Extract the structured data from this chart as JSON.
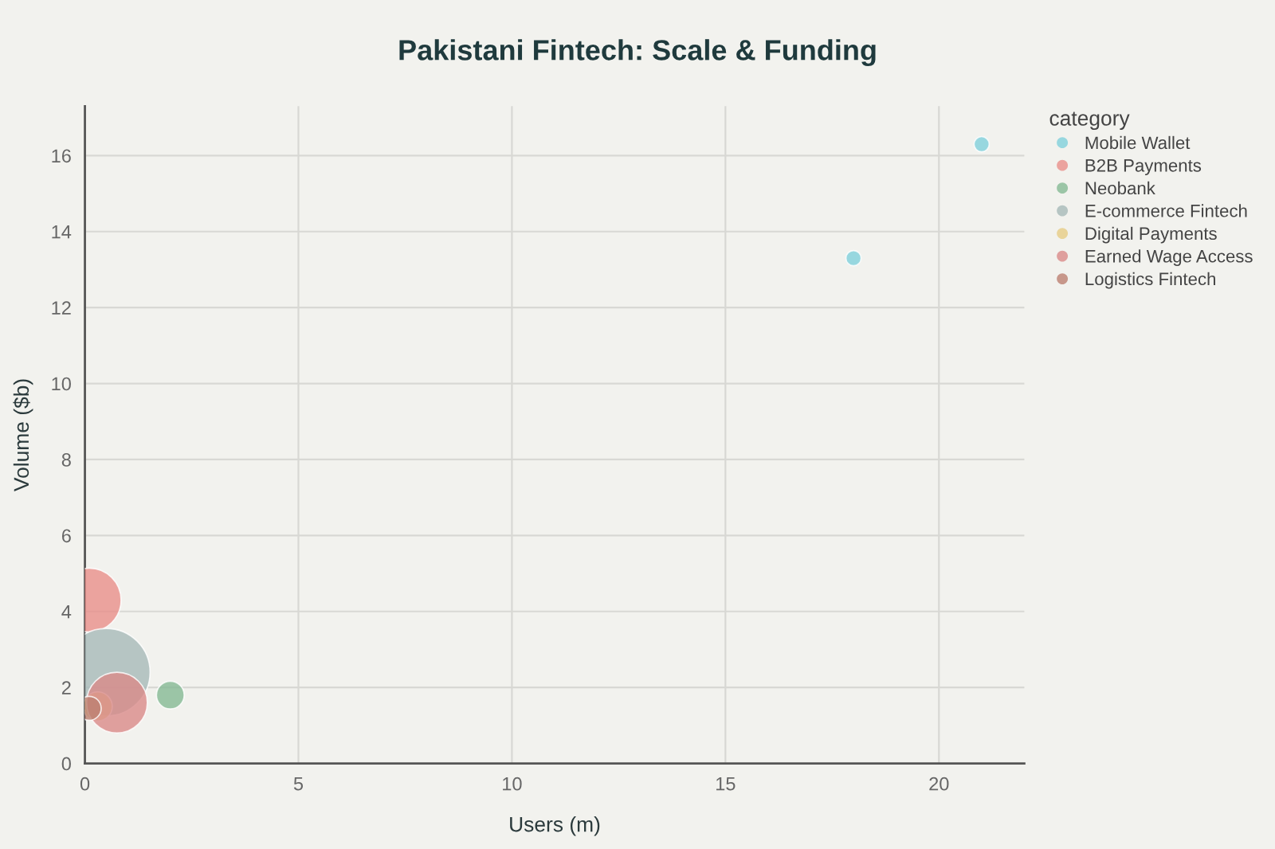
{
  "chart_data": {
    "type": "bubble",
    "title": "Pakistani Fintech: Scale & Funding",
    "xlabel": "Users (m)",
    "ylabel": "Volume ($b)",
    "legend_title": "category",
    "xlim": [
      0,
      22
    ],
    "ylim": [
      0,
      17.3
    ],
    "xticks": [
      0,
      5,
      10,
      15,
      20
    ],
    "yticks": [
      0,
      2,
      4,
      6,
      8,
      10,
      12,
      14,
      16
    ],
    "grid": true,
    "legend": "top right",
    "series": [
      {
        "name": "Mobile Wallet",
        "color": "#7fd0db",
        "x": [
          18.0,
          21.0
        ],
        "values": [
          13.3,
          16.3
        ],
        "sizes": [
          0.03,
          0.03
        ]
      },
      {
        "name": "B2B Payments",
        "color": "#e88e8a",
        "x": [
          0.1
        ],
        "values": [
          4.3
        ],
        "sizes": [
          0.53
        ]
      },
      {
        "name": "Neobank",
        "color": "#85b993",
        "x": [
          2.0
        ],
        "values": [
          1.8
        ],
        "sizes": [
          0.1
        ]
      },
      {
        "name": "E-commerce Fintech",
        "color": "#a6b9b8",
        "x": [
          0.5
        ],
        "values": [
          2.4
        ],
        "sizes": [
          1
        ]
      },
      {
        "name": "Digital Payments",
        "color": "#e6cc84",
        "x": [
          0.3
        ],
        "values": [
          1.5
        ],
        "sizes": [
          0.11
        ]
      },
      {
        "name": "Earned Wage Access",
        "color": "#d98a88",
        "x": [
          0.75
        ],
        "values": [
          1.6
        ],
        "sizes": [
          0.48
        ]
      },
      {
        "name": "Logistics Fintech",
        "color": "#bb7f70",
        "x": [
          0.1
        ],
        "values": [
          1.45
        ],
        "sizes": [
          0.075
        ]
      }
    ]
  }
}
